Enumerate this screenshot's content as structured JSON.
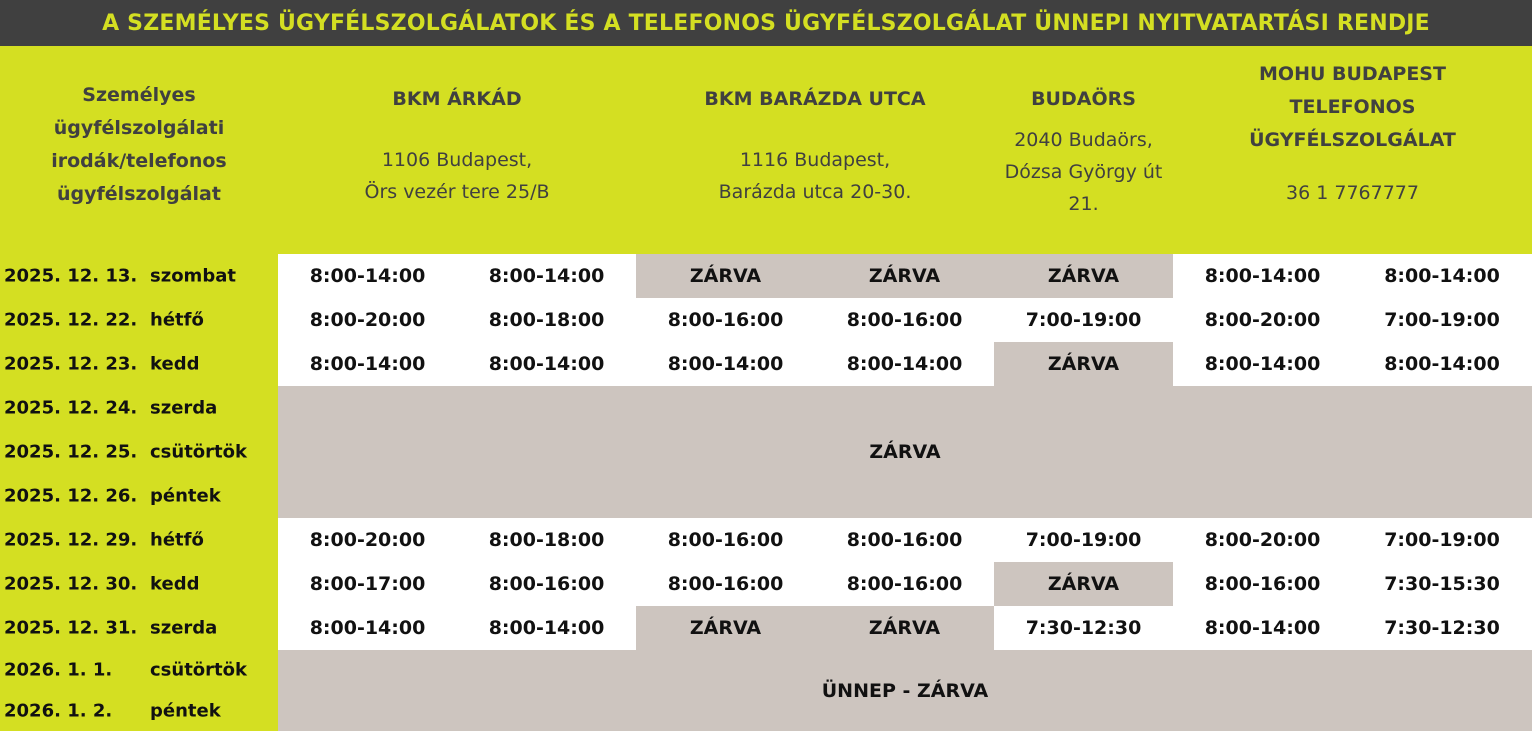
{
  "title": "A SZEMÉLYES ÜGYFÉLSZOLGÁLATOK ÉS A TELEFONOS ÜGYFÉLSZOLGÁLAT ÜNNEPI NYITVATARTÁSI RENDJE",
  "colors": {
    "title_bg": "#404040",
    "accent": "#d4df22",
    "closed": "#cdc5bf"
  },
  "header": {
    "label_lines": [
      "Személyes",
      "ügyfélszolgálati",
      "irodák/telefonos",
      "ügyfélszolgálat"
    ],
    "locations": [
      {
        "name_lines": [
          "BKM ÁRKÁD"
        ],
        "addr_lines": [
          "1106 Budapest,",
          "Örs vezér tere 25/B"
        ]
      },
      {
        "name_lines": [
          "BKM BARÁZDA UTCA"
        ],
        "addr_lines": [
          "1116 Budapest,",
          "Barázda utca 20-30."
        ]
      },
      {
        "name_lines": [
          "BUDAÖRS"
        ],
        "addr_lines": [
          "2040 Budaörs,",
          "Dózsa György út",
          "21."
        ]
      },
      {
        "name_lines": [
          "MOHU BUDAPEST",
          "TELEFONOS",
          "ÜGYFÉLSZOLGÁLAT"
        ],
        "addr_lines": [
          "36 1 7767777"
        ]
      }
    ]
  },
  "rows": [
    {
      "date": "2025. 12. 13.",
      "day": "szombat",
      "cells": [
        {
          "t": "8:00-14:00"
        },
        {
          "t": "8:00-14:00"
        },
        {
          "t": "ZÁRVA",
          "c": true
        },
        {
          "t": "ZÁRVA",
          "c": true
        },
        {
          "t": "ZÁRVA",
          "c": true
        },
        {
          "t": "8:00-14:00"
        },
        {
          "t": "8:00-14:00"
        }
      ]
    },
    {
      "date": "2025. 12. 22.",
      "day": "hétfő",
      "cells": [
        {
          "t": "8:00-20:00"
        },
        {
          "t": "8:00-18:00"
        },
        {
          "t": "8:00-16:00"
        },
        {
          "t": "8:00-16:00"
        },
        {
          "t": "7:00-19:00"
        },
        {
          "t": "8:00-20:00"
        },
        {
          "t": "7:00-19:00"
        }
      ]
    },
    {
      "date": "2025. 12. 23.",
      "day": "kedd",
      "cells": [
        {
          "t": "8:00-14:00"
        },
        {
          "t": "8:00-14:00"
        },
        {
          "t": "8:00-14:00"
        },
        {
          "t": "8:00-14:00"
        },
        {
          "t": "ZÁRVA",
          "c": true
        },
        {
          "t": "8:00-14:00"
        },
        {
          "t": "8:00-14:00"
        }
      ]
    },
    {
      "date": "2025. 12. 24.",
      "day": "szerda",
      "merged": "ZÁRVA",
      "span": 3
    },
    {
      "date": "2025. 12. 25.",
      "day": "csütörtök"
    },
    {
      "date": "2025. 12. 26.",
      "day": "péntek"
    },
    {
      "date": "2025. 12. 29.",
      "day": "hétfő",
      "cells": [
        {
          "t": "8:00-20:00"
        },
        {
          "t": "8:00-18:00"
        },
        {
          "t": "8:00-16:00"
        },
        {
          "t": "8:00-16:00"
        },
        {
          "t": "7:00-19:00"
        },
        {
          "t": "8:00-20:00"
        },
        {
          "t": "7:00-19:00"
        }
      ]
    },
    {
      "date": "2025. 12. 30.",
      "day": "kedd",
      "cells": [
        {
          "t": "8:00-17:00"
        },
        {
          "t": "8:00-16:00"
        },
        {
          "t": "8:00-16:00"
        },
        {
          "t": "8:00-16:00"
        },
        {
          "t": "ZÁRVA",
          "c": true
        },
        {
          "t": "8:00-16:00"
        },
        {
          "t": "7:30-15:30"
        }
      ]
    },
    {
      "date": "2025. 12. 31.",
      "day": "szerda",
      "cells": [
        {
          "t": "8:00-14:00"
        },
        {
          "t": "8:00-14:00"
        },
        {
          "t": "ZÁRVA",
          "c": true
        },
        {
          "t": "ZÁRVA",
          "c": true
        },
        {
          "t": "7:30-12:30"
        },
        {
          "t": "8:00-14:00"
        },
        {
          "t": "7:30-12:30"
        }
      ]
    },
    {
      "date": "2026. 1. 1.",
      "day": "csütörtök",
      "merged": "ÜNNEP -  ZÁRVA",
      "span": 2
    },
    {
      "date": "2026. 1. 2.",
      "day": "péntek"
    }
  ]
}
